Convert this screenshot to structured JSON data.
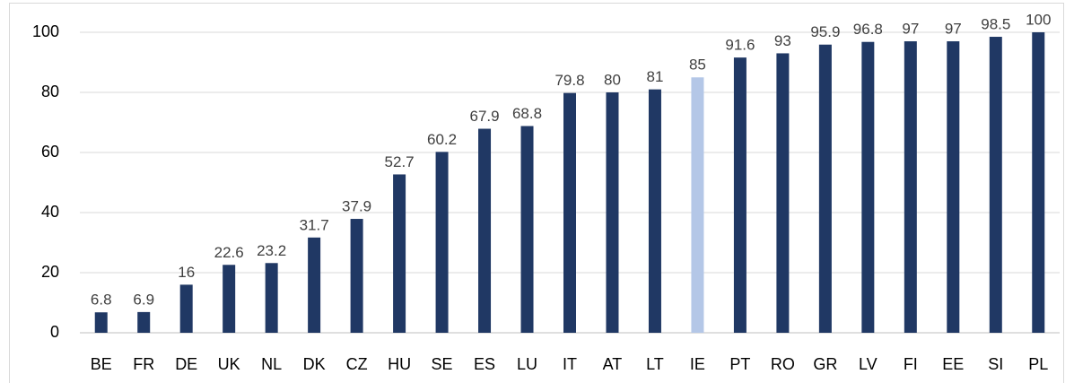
{
  "chart_data": {
    "type": "bar",
    "categories": [
      "BE",
      "FR",
      "DE",
      "UK",
      "NL",
      "DK",
      "CZ",
      "HU",
      "SE",
      "ES",
      "LU",
      "IT",
      "AT",
      "LT",
      "IE",
      "PT",
      "RO",
      "GR",
      "LV",
      "FI",
      "EE",
      "SI",
      "PL"
    ],
    "values": [
      6.8,
      6.9,
      16,
      22.6,
      23.2,
      31.7,
      37.9,
      52.7,
      60.2,
      67.9,
      68.8,
      79.8,
      80,
      81,
      85,
      91.6,
      93,
      95.9,
      96.8,
      97,
      97,
      98.5,
      100
    ],
    "colors": [
      "#203864",
      "#203864",
      "#203864",
      "#203864",
      "#203864",
      "#203864",
      "#203864",
      "#203864",
      "#203864",
      "#203864",
      "#203864",
      "#203864",
      "#203864",
      "#203864",
      "#b4c7e7",
      "#203864",
      "#203864",
      "#203864",
      "#203864",
      "#203864",
      "#203864",
      "#203864",
      "#203864"
    ],
    "ylim": [
      0,
      100
    ],
    "yticks": [
      0,
      20,
      40,
      60,
      80,
      100
    ],
    "grid": true
  }
}
